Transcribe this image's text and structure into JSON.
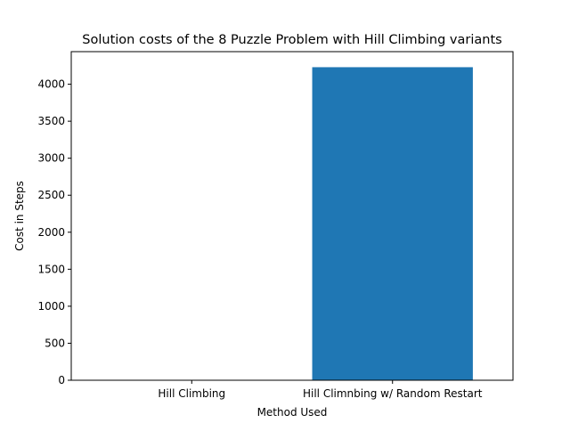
{
  "chart_data": {
    "type": "bar",
    "title": "Solution costs of the 8 Puzzle Problem with Hill Climbing variants",
    "xlabel": "Method Used",
    "ylabel": "Cost in Steps",
    "categories": [
      "Hill Climbing",
      "Hill Climnbing w/ Random Restart"
    ],
    "values": [
      0,
      4230
    ],
    "ylim": [
      0,
      4440
    ],
    "yticks": [
      0,
      500,
      1000,
      1500,
      2000,
      2500,
      3000,
      3500,
      4000
    ],
    "grid": false,
    "legend": "none",
    "bar_color": "#1f77b4"
  }
}
